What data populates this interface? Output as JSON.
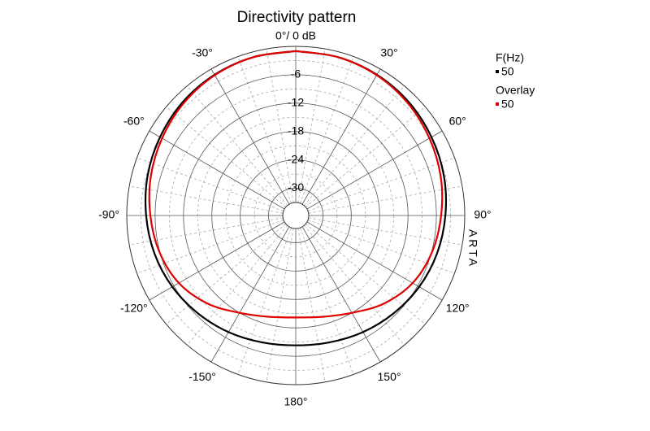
{
  "chart_data": {
    "type": "polar",
    "title": "Directivity pattern",
    "x": [
      0,
      15,
      30,
      45,
      60,
      75,
      90,
      105,
      120,
      135,
      150,
      165,
      180,
      195,
      210,
      225,
      240,
      255,
      270,
      285,
      300,
      315,
      330,
      345,
      360
    ],
    "series": [
      {
        "name": "50",
        "group": "F(Hz)",
        "color": "#000000",
        "values": [
          -1,
          -1.1,
          -1.4,
          -1.9,
          -2.6,
          -3.3,
          -4.1,
          -4.8,
          -5.6,
          -6.5,
          -7.3,
          -8,
          -8.3,
          -8,
          -7.3,
          -6.5,
          -5.6,
          -4.8,
          -4.1,
          -3.3,
          -2.6,
          -1.9,
          -1.4,
          -1.1,
          -1
        ]
      },
      {
        "name": "50",
        "group": "Overlay",
        "color": "#e00000",
        "values": [
          -1,
          -1.1,
          -1.5,
          -2.2,
          -3.1,
          -4,
          -5,
          -5.9,
          -7.2,
          -9.4,
          -12,
          -13.6,
          -14.2,
          -13.6,
          -12,
          -9.4,
          -7.2,
          -5.9,
          -5,
          -4,
          -3.1,
          -2.2,
          -1.5,
          -1.1,
          -1
        ]
      }
    ],
    "rlim": [
      -33,
      0
    ],
    "rticks": [
      -6,
      -12,
      -18,
      -24,
      -30
    ],
    "xticks": [
      {
        "value": 0,
        "label": "0°/ 0 dB"
      },
      {
        "value": 30,
        "label": "30°"
      },
      {
        "value": 60,
        "label": "60°"
      },
      {
        "value": 90,
        "label": "90°"
      },
      {
        "value": 120,
        "label": "120°"
      },
      {
        "value": 150,
        "label": "150°"
      },
      {
        "value": 180,
        "label": "180°"
      },
      {
        "value": -150,
        "label": "-150°"
      },
      {
        "value": -120,
        "label": "-120°"
      },
      {
        "value": -90,
        "label": "-90°"
      },
      {
        "value": -60,
        "label": "-60°"
      },
      {
        "value": -30,
        "label": "-30°"
      }
    ],
    "watermark": "ARTA",
    "grid": true
  }
}
